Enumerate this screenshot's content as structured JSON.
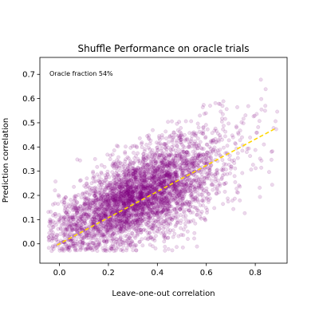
{
  "chart_data": {
    "type": "scatter",
    "title": "Shuffle Performance on oracle trials",
    "xlabel": "Leave-one-out correlation",
    "ylabel": "Prediction correlation",
    "xlim": [
      -0.08,
      0.93
    ],
    "ylim": [
      -0.08,
      0.77
    ],
    "xticks": [
      0.0,
      0.2,
      0.4,
      0.6,
      0.8
    ],
    "yticks": [
      0.0,
      0.1,
      0.2,
      0.3,
      0.4,
      0.5,
      0.6,
      0.7
    ],
    "xtick_labels": [
      "0.0",
      "0.2",
      "0.4",
      "0.6",
      "0.8"
    ],
    "ytick_labels": [
      "0.0",
      "0.1",
      "0.2",
      "0.3",
      "0.4",
      "0.5",
      "0.6",
      "0.7"
    ],
    "annotation": "Oracle fraction 54%",
    "scatter_color": "#800080",
    "scatter_alpha": 0.15,
    "point_count": 4000,
    "x_distribution": {
      "mean": 0.33,
      "sd": 0.17,
      "min": -0.05,
      "max": 0.9
    },
    "noise_sd": 0.09,
    "fit_line": {
      "slope": 0.54,
      "intercept": 0.0,
      "x_range": [
        -0.01,
        0.88
      ],
      "color": "#ffd700",
      "style": "dashed"
    }
  }
}
